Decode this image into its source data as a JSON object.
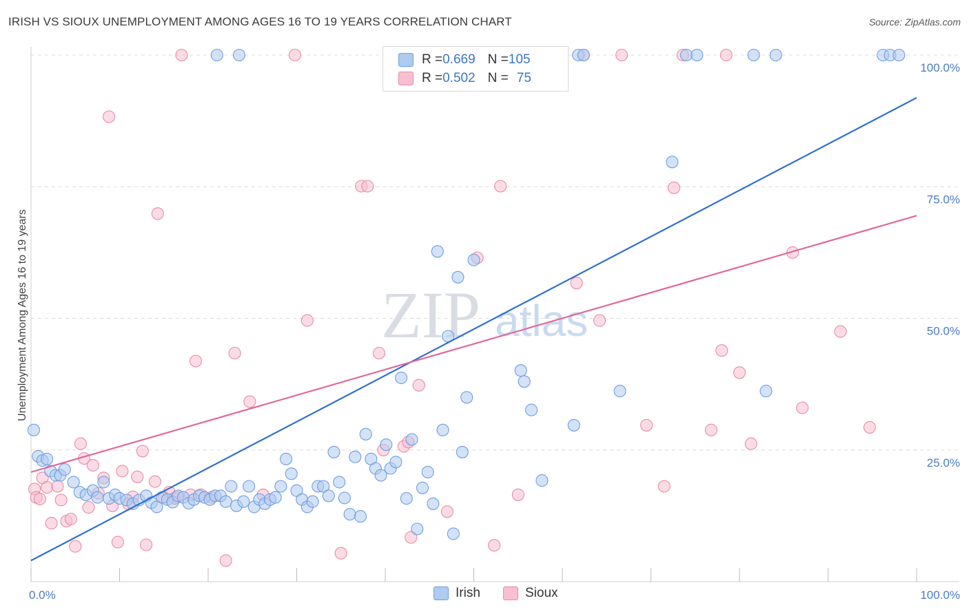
{
  "header": {
    "title": "IRISH VS SIOUX UNEMPLOYMENT AMONG AGES 16 TO 19 YEARS CORRELATION CHART",
    "source": "Source: ZipAtlas.com"
  },
  "watermark": {
    "zip": "ZIP",
    "atlas": "atlas"
  },
  "legend": {
    "irish": {
      "r_label": "R = ",
      "r_value": "0.669",
      "n_label": "N = ",
      "n_value": "105"
    },
    "sioux": {
      "r_label": "R = ",
      "r_value": "0.502",
      "n_label": "N = ",
      "n_value": "75"
    }
  },
  "colors": {
    "irish_fill": "#aecbf0",
    "irish_stroke": "#6f9de0",
    "irish_line": "#2f6fcf",
    "sioux_fill": "#f7bfd0",
    "sioux_stroke": "#e98aa8",
    "sioux_line": "#e0679a",
    "grid": "#dcdcdc",
    "tick_label": "#4a7cc4"
  },
  "chart_data": {
    "type": "scatter",
    "title": "IRISH VS SIOUX UNEMPLOYMENT AMONG AGES 16 TO 19 YEARS CORRELATION CHART",
    "xlabel": "",
    "ylabel": "Unemployment Among Ages 16 to 19 years",
    "xlim": [
      0,
      100
    ],
    "ylim": [
      0,
      102
    ],
    "y_ticks": [
      25,
      50,
      75,
      100
    ],
    "y_tick_labels": [
      "25.0%",
      "50.0%",
      "75.0%",
      "100.0%"
    ],
    "x_tick_labels": [
      "0.0%",
      "100.0%"
    ],
    "grid": true,
    "legend_position": "top-center",
    "series": [
      {
        "name": "Irish",
        "color": "#6f9de0",
        "trend": {
          "x0": 0,
          "y0": 4.0,
          "x1": 100,
          "y1": 91.9
        },
        "points": [
          [
            0.3,
            28.8
          ],
          [
            0.8,
            23.8
          ],
          [
            1.3,
            23.0
          ],
          [
            1.8,
            23.3
          ],
          [
            2.2,
            21.0
          ],
          [
            2.8,
            20.2
          ],
          [
            3.3,
            20.2
          ],
          [
            3.8,
            21.3
          ],
          [
            4.8,
            18.9
          ],
          [
            5.5,
            17.0
          ],
          [
            6.2,
            16.5
          ],
          [
            7.0,
            17.3
          ],
          [
            7.5,
            16.0
          ],
          [
            8.2,
            18.9
          ],
          [
            8.8,
            15.8
          ],
          [
            9.5,
            16.5
          ],
          [
            10.0,
            15.8
          ],
          [
            10.8,
            15.5
          ],
          [
            11.5,
            14.8
          ],
          [
            12.2,
            15.5
          ],
          [
            13.0,
            16.3
          ],
          [
            13.6,
            15.0
          ],
          [
            14.2,
            14.2
          ],
          [
            14.8,
            16.0
          ],
          [
            15.4,
            15.6
          ],
          [
            16.0,
            15.1
          ],
          [
            16.6,
            16.3
          ],
          [
            17.2,
            16.0
          ],
          [
            17.8,
            14.9
          ],
          [
            18.4,
            15.6
          ],
          [
            19.0,
            16.3
          ],
          [
            19.6,
            16.0
          ],
          [
            20.2,
            15.6
          ],
          [
            20.8,
            16.3
          ],
          [
            21.4,
            16.3
          ],
          [
            22.0,
            15.2
          ],
          [
            22.6,
            18.1
          ],
          [
            23.2,
            14.4
          ],
          [
            24.0,
            15.2
          ],
          [
            24.6,
            18.1
          ],
          [
            25.2,
            14.2
          ],
          [
            25.8,
            15.6
          ],
          [
            26.4,
            14.8
          ],
          [
            27.0,
            15.6
          ],
          [
            27.6,
            16.0
          ],
          [
            28.2,
            18.1
          ],
          [
            28.8,
            23.3
          ],
          [
            29.4,
            20.5
          ],
          [
            30.0,
            17.3
          ],
          [
            30.6,
            15.6
          ],
          [
            31.2,
            14.2
          ],
          [
            31.8,
            15.2
          ],
          [
            32.4,
            18.1
          ],
          [
            33.0,
            18.1
          ],
          [
            33.6,
            16.3
          ],
          [
            34.2,
            24.6
          ],
          [
            34.8,
            18.9
          ],
          [
            35.4,
            15.9
          ],
          [
            36.0,
            12.8
          ],
          [
            36.6,
            23.7
          ],
          [
            37.2,
            12.4
          ],
          [
            37.8,
            28.0
          ],
          [
            38.4,
            23.3
          ],
          [
            38.9,
            21.5
          ],
          [
            39.5,
            20.2
          ],
          [
            40.1,
            26.0
          ],
          [
            40.6,
            21.5
          ],
          [
            41.2,
            22.7
          ],
          [
            41.8,
            38.7
          ],
          [
            42.4,
            15.8
          ],
          [
            43.0,
            27.0
          ],
          [
            43.6,
            10.0
          ],
          [
            44.2,
            17.8
          ],
          [
            44.8,
            20.8
          ],
          [
            45.4,
            14.8
          ],
          [
            45.9,
            62.7
          ],
          [
            46.5,
            28.8
          ],
          [
            47.1,
            46.6
          ],
          [
            47.7,
            9.1
          ],
          [
            48.2,
            57.8
          ],
          [
            48.7,
            24.6
          ],
          [
            49.2,
            35.0
          ],
          [
            50.0,
            61.1
          ],
          [
            50.6,
            100.0
          ],
          [
            51.0,
            100.0
          ],
          [
            55.3,
            40.1
          ],
          [
            55.7,
            38.0
          ],
          [
            56.5,
            32.6
          ],
          [
            57.7,
            19.2
          ],
          [
            61.3,
            29.7
          ],
          [
            61.8,
            100.0
          ],
          [
            62.4,
            100.0
          ],
          [
            66.5,
            36.2
          ],
          [
            72.4,
            79.7
          ],
          [
            74.0,
            100.0
          ],
          [
            75.2,
            100.0
          ],
          [
            81.6,
            100.0
          ],
          [
            83.0,
            36.2
          ],
          [
            84.1,
            100.0
          ],
          [
            96.2,
            100.0
          ],
          [
            97.0,
            100.0
          ],
          [
            98.0,
            100.0
          ],
          [
            21.0,
            100.0
          ],
          [
            23.5,
            100.0
          ],
          [
            40.5,
            100.0
          ]
        ]
      },
      {
        "name": "Sioux",
        "color": "#e98aa8",
        "trend": {
          "x0": 0,
          "y0": 20.8,
          "x1": 100,
          "y1": 69.5
        },
        "points": [
          [
            0.4,
            17.6
          ],
          [
            0.6,
            16.0
          ],
          [
            1.0,
            15.7
          ],
          [
            1.3,
            19.7
          ],
          [
            1.8,
            17.9
          ],
          [
            2.3,
            11.1
          ],
          [
            3.0,
            18.1
          ],
          [
            3.4,
            15.5
          ],
          [
            4.0,
            11.5
          ],
          [
            4.5,
            11.9
          ],
          [
            5.0,
            6.7
          ],
          [
            5.6,
            26.2
          ],
          [
            6.0,
            23.4
          ],
          [
            6.5,
            14.1
          ],
          [
            7.0,
            22.1
          ],
          [
            7.6,
            16.8
          ],
          [
            8.2,
            19.7
          ],
          [
            8.8,
            88.3
          ],
          [
            9.2,
            14.4
          ],
          [
            9.8,
            7.5
          ],
          [
            10.3,
            21.0
          ],
          [
            11.0,
            14.8
          ],
          [
            11.5,
            16.1
          ],
          [
            12.0,
            19.9
          ],
          [
            12.6,
            24.8
          ],
          [
            13.0,
            7.0
          ],
          [
            14.0,
            19.0
          ],
          [
            14.3,
            69.9
          ],
          [
            15.0,
            16.0
          ],
          [
            15.6,
            17.0
          ],
          [
            16.2,
            15.8
          ],
          [
            16.5,
            16.0
          ],
          [
            17.0,
            100.0
          ],
          [
            18.0,
            16.5
          ],
          [
            18.6,
            41.9
          ],
          [
            19.2,
            16.5
          ],
          [
            20.4,
            16.0
          ],
          [
            22.0,
            4.0
          ],
          [
            23.0,
            43.4
          ],
          [
            24.7,
            34.2
          ],
          [
            26.2,
            16.5
          ],
          [
            29.8,
            100.0
          ],
          [
            31.2,
            49.6
          ],
          [
            35.0,
            5.4
          ],
          [
            37.3,
            75.1
          ],
          [
            38.0,
            75.1
          ],
          [
            39.3,
            43.4
          ],
          [
            39.8,
            25.0
          ],
          [
            42.1,
            25.7
          ],
          [
            42.6,
            26.5
          ],
          [
            42.9,
            8.4
          ],
          [
            43.8,
            37.3
          ],
          [
            47.0,
            13.3
          ],
          [
            50.4,
            61.5
          ],
          [
            52.3,
            6.9
          ],
          [
            53.0,
            75.1
          ],
          [
            55.0,
            16.5
          ],
          [
            55.8,
            100.0
          ],
          [
            61.6,
            56.7
          ],
          [
            62.4,
            100.0
          ],
          [
            64.2,
            49.6
          ],
          [
            66.7,
            100.0
          ],
          [
            69.5,
            29.7
          ],
          [
            71.5,
            18.1
          ],
          [
            72.6,
            74.8
          ],
          [
            73.6,
            100.0
          ],
          [
            76.8,
            28.8
          ],
          [
            78.0,
            43.9
          ],
          [
            78.5,
            100.0
          ],
          [
            80.0,
            39.7
          ],
          [
            81.3,
            26.2
          ],
          [
            86.0,
            62.5
          ],
          [
            87.1,
            33.0
          ],
          [
            91.4,
            47.5
          ],
          [
            94.7,
            29.3
          ]
        ]
      }
    ]
  }
}
